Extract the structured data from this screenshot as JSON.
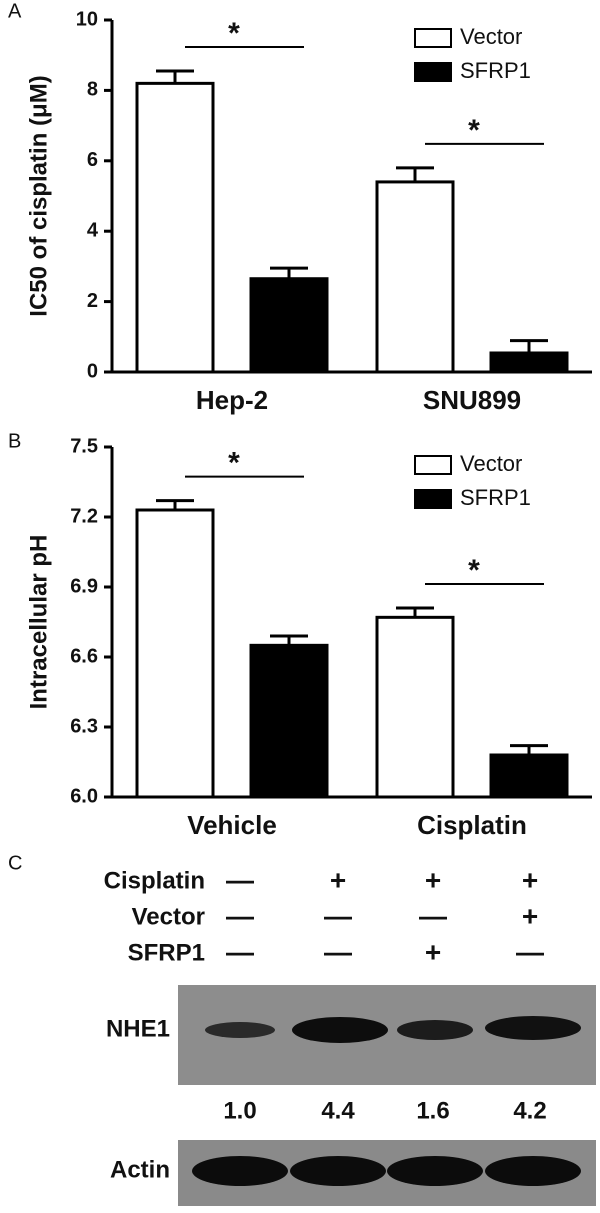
{
  "chart_data": [
    {
      "type": "bar",
      "panel": "A",
      "y_label": "IC50 of cisplatin (μM)",
      "categories": [
        "Hep-2",
        "SNU899"
      ],
      "series": [
        {
          "name": "Vector",
          "color": "#ffffff",
          "values": [
            8.2,
            5.4
          ],
          "errors": [
            0.35,
            0.4
          ]
        },
        {
          "name": "SFRP1",
          "color": "#000000",
          "values": [
            2.65,
            0.54
          ],
          "errors": [
            0.3,
            0.35
          ]
        }
      ],
      "annotations": [
        "*",
        "*"
      ],
      "ylim": [
        0,
        10
      ],
      "yticks": [
        0,
        2,
        4,
        6,
        8,
        10
      ],
      "legend": "top-right"
    },
    {
      "type": "bar",
      "panel": "B",
      "y_label": "Intracellular pH",
      "categories": [
        "Vehicle",
        "Cisplatin"
      ],
      "series": [
        {
          "name": "Vector",
          "color": "#ffffff",
          "values": [
            7.23,
            6.77
          ],
          "errors": [
            0.04,
            0.04
          ]
        },
        {
          "name": "SFRP1",
          "color": "#000000",
          "values": [
            6.65,
            6.18
          ],
          "errors": [
            0.04,
            0.04
          ]
        }
      ],
      "annotations": [
        "*",
        "*"
      ],
      "ylim": [
        6,
        7.5
      ],
      "yticks": [
        {
          "value": 6,
          "label": "6.0"
        },
        6.3,
        6.6,
        6.9,
        7.2,
        7.5
      ],
      "legend": "top-right"
    }
  ],
  "blot": {
    "panel": "C",
    "rows": [
      {
        "label": "Cisplatin",
        "cells": [
          "—",
          "+",
          "+",
          "+"
        ]
      },
      {
        "label": "Vector",
        "cells": [
          "—",
          "—",
          "—",
          "+"
        ]
      },
      {
        "label": "SFRP1",
        "cells": [
          "—",
          "—",
          "+",
          "—"
        ]
      }
    ],
    "band_label": "NHE1",
    "quantification": [
      "1.0",
      "4.4",
      "1.6",
      "4.2"
    ],
    "loading_label": "Actin"
  }
}
